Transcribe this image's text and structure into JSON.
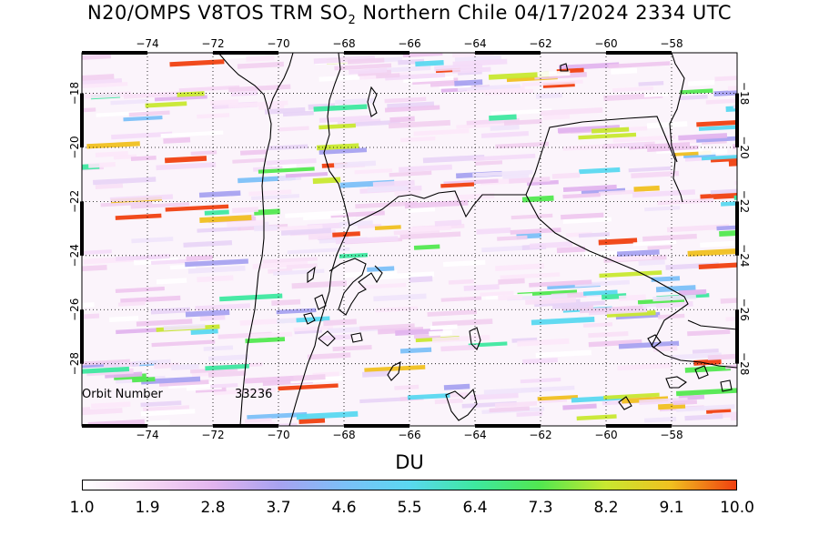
{
  "title": {
    "prefix": "N20/OMPS V8TOS TRM SO",
    "subscript": "2",
    "suffix": " Northern Chile 04/17/2024 2334 UTC"
  },
  "map": {
    "lon_range": [
      -76,
      -56
    ],
    "lat_range": [
      -16.5,
      -30.3
    ],
    "lon_ticks": [
      -74,
      -72,
      -70,
      -68,
      -66,
      -64,
      -62,
      -60,
      -58
    ],
    "lat_ticks": [
      -18,
      -20,
      -22,
      -24,
      -26,
      -28
    ],
    "orbit_label": "Orbit Number",
    "orbit_value": "33236"
  },
  "colorbar": {
    "unit_label": "DU",
    "ticks": [
      "1.0",
      "1.9",
      "2.8",
      "3.7",
      "4.6",
      "5.5",
      "6.4",
      "7.3",
      "8.2",
      "9.1",
      "10.0"
    ],
    "colors": [
      "#ffffff",
      "#f6d8f4",
      "#e2b4ee",
      "#a8a2f0",
      "#7cc0f8",
      "#5ad8f0",
      "#3ee8a0",
      "#52e850",
      "#c8e830",
      "#f0c020",
      "#f04010"
    ]
  }
}
